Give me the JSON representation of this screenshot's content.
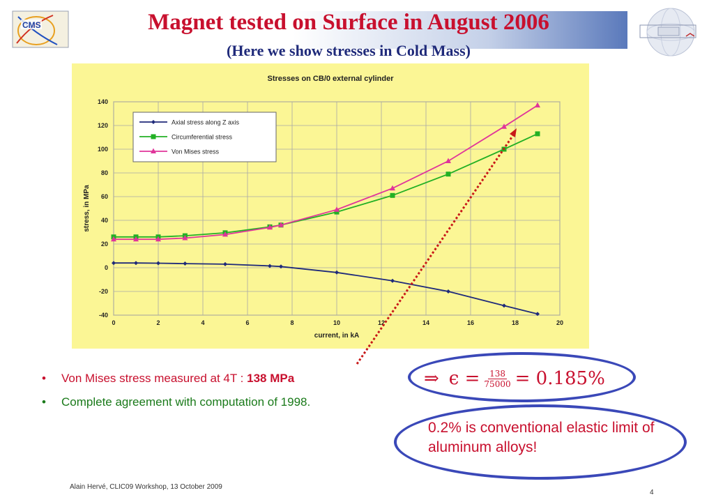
{
  "slide": {
    "title": "Magnet tested on Surface in August 2006",
    "subtitle": "(Here we show stresses in Cold Mass)",
    "logo_text": "CMS",
    "footer": "Alain Hervé, CLIC09 Workshop,  13 October 2009",
    "page_number": "4"
  },
  "bullets": {
    "b1_text": "Von Mises stress measured at 4T : ",
    "b1_value": "138 MPa",
    "b2_text": "Complete agreement with computation of 1998."
  },
  "formula": {
    "arrow": "⇒",
    "lhs": "ϵ =",
    "numerator": "138",
    "denominator": "75000",
    "result": "= 0.185%"
  },
  "note": {
    "text": "0.2% is conventional elastic limit of aluminum alloys!"
  },
  "colors": {
    "title": "#c8102e",
    "subtitle": "#1f2a7a",
    "chart_bg": "#fbf695",
    "axial": "#1f2a7a",
    "circ": "#22b024",
    "vonmises": "#e0359a",
    "arrow": "#c81818",
    "ellipse": "#3a48b8"
  },
  "chart_data": {
    "type": "line",
    "title": "Stresses on CB/0 external cylinder",
    "xlabel": "current, in kA",
    "ylabel": "stress, in MPa",
    "xlim": [
      0,
      20
    ],
    "ylim": [
      -40,
      140
    ],
    "xticks": [
      0,
      2,
      4,
      6,
      8,
      10,
      12,
      14,
      16,
      18,
      20
    ],
    "yticks": [
      -40,
      -20,
      0,
      20,
      40,
      60,
      80,
      100,
      120,
      140
    ],
    "grid": true,
    "legend": "top-left",
    "series": [
      {
        "name": "Axial stress along Z axis",
        "color": "#1f2a7a",
        "marker": "diamond",
        "x": [
          0,
          1,
          2,
          3.2,
          5,
          7,
          7.5,
          10,
          12.5,
          15,
          17.5,
          19
        ],
        "y": [
          4,
          4,
          3.8,
          3.5,
          3,
          1.5,
          1,
          -4,
          -11,
          -20,
          -32,
          -39
        ]
      },
      {
        "name": "Circumferential stress",
        "color": "#22b024",
        "marker": "square",
        "x": [
          0,
          1,
          2,
          3.2,
          5,
          7,
          7.5,
          10,
          12.5,
          15,
          17.5,
          19
        ],
        "y": [
          26,
          26,
          26,
          27,
          29.5,
          34.5,
          36,
          47,
          61,
          79,
          100,
          113
        ]
      },
      {
        "name": "Von Mises stress",
        "color": "#e0359a",
        "marker": "triangle",
        "x": [
          0,
          1,
          2,
          3.2,
          5,
          7,
          7.5,
          10,
          12.5,
          15,
          17.5,
          19
        ],
        "y": [
          24,
          24,
          24,
          25,
          28,
          34,
          36,
          49,
          67,
          90,
          119,
          137
        ]
      }
    ]
  }
}
